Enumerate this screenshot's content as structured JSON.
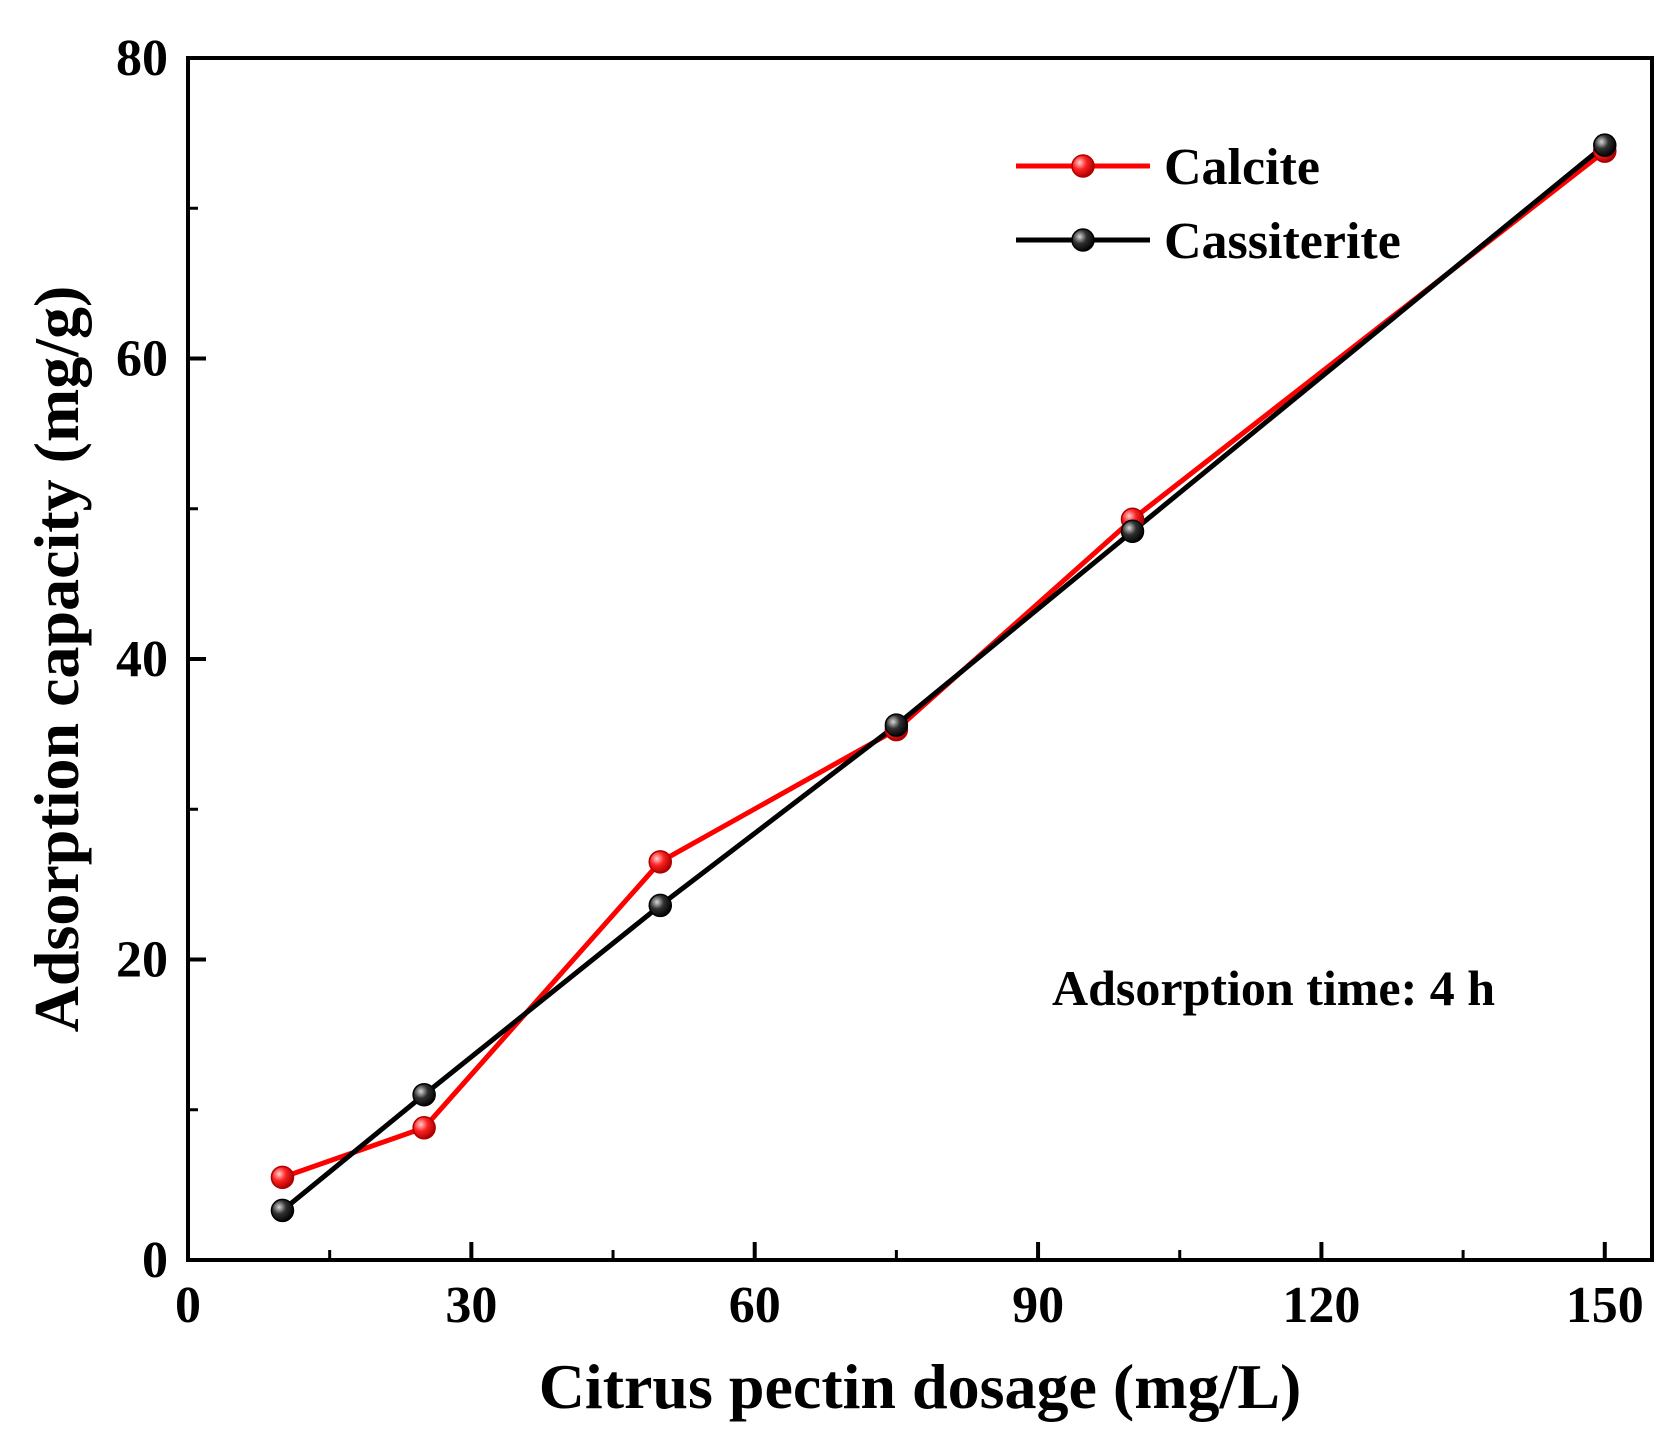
{
  "chart_data": {
    "type": "line",
    "title": "",
    "xlabel": "Citrus pectin dosage (mg/L)",
    "ylabel": "Adsorption capacity (mg/g)",
    "xlim": [
      0,
      155
    ],
    "ylim": [
      0,
      80
    ],
    "xticks": [
      0,
      30,
      60,
      90,
      120,
      150
    ],
    "yticks": [
      0,
      20,
      40,
      60,
      80
    ],
    "x_minor_ticks": [
      15,
      45,
      75,
      105,
      135
    ],
    "y_minor_ticks": [
      10,
      30,
      50,
      70
    ],
    "x_tick_labels": [
      "0",
      "30",
      "60",
      "90",
      "120",
      "150"
    ],
    "y_tick_labels": [
      "0",
      "20",
      "40",
      "60",
      "80"
    ],
    "grid": false,
    "legend_position": "top-right",
    "x": [
      10,
      25,
      50,
      75,
      100,
      150
    ],
    "series": [
      {
        "name": "Calcite",
        "color": "#ff0000",
        "values": [
          5.5,
          8.8,
          26.5,
          35.3,
          49.3,
          73.8
        ]
      },
      {
        "name": "Cassiterite",
        "color": "#000000",
        "values": [
          3.3,
          11.0,
          23.6,
          35.6,
          48.5,
          74.2
        ]
      }
    ],
    "annotations": [
      "Adsorption time: 4 h"
    ]
  }
}
